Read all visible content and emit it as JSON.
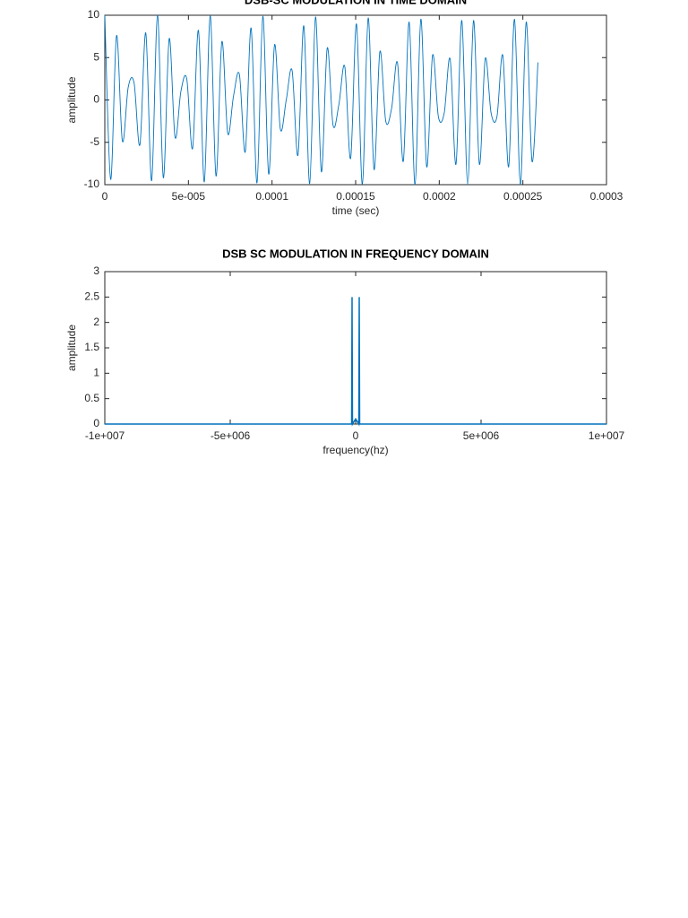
{
  "chart_data": [
    {
      "type": "line",
      "title": "DSB-SC MODULATION IN TIME DOMAIN",
      "x_label": "time (sec)",
      "y_label": "amplitude",
      "x": [
        0,
        3.5e-06,
        7e-06,
        1.05e-05,
        1.4e-05,
        1.75e-05,
        2.1e-05,
        2.45e-05,
        2.8e-05,
        3.15e-05,
        3.5e-05,
        3.85e-05,
        4.2e-05,
        4.55e-05,
        4.9e-05,
        5.25e-05,
        5.6e-05,
        5.95e-05,
        6.3e-05,
        6.65e-05,
        7e-05,
        7.35e-05,
        7.7e-05,
        8.05e-05,
        8.4e-05,
        8.75e-05,
        9.1e-05,
        9.45e-05,
        9.8e-05,
        0.0001015,
        0.000105,
        0.0001085,
        0.000112,
        0.0001155,
        0.000119,
        0.0001225,
        0.000126,
        0.0001295,
        0.000133,
        0.0001365,
        0.00014,
        0.0001435,
        0.000147,
        0.0001505,
        0.000154,
        0.0001575,
        0.000161,
        0.0001645,
        0.000168,
        0.0001715,
        0.000175,
        0.0001785,
        0.000182,
        0.0001855,
        0.000189,
        0.0001925,
        0.000196,
        0.0001995,
        0.000203,
        0.0002065,
        0.00021,
        0.0002135,
        0.000217,
        0.0002205,
        0.000224,
        0.0002275,
        0.000231,
        0.0002345,
        0.000238,
        0.0002415,
        0.000245,
        0.0002485,
        0.000252,
        0.0002555,
        0.000259
      ],
      "series": [
        {
          "color": "#0072bd",
          "values": [
            10,
            -9.38,
            7.59,
            -4.85,
            1.51,
            2.01,
            -5.29,
            7.91,
            -9.54,
            9.99,
            -9.19,
            7.24,
            -4.4,
            1.01,
            2.5,
            -5.71,
            8.21,
            -9.68,
            9.95,
            -8.98,
            6.88,
            -3.94,
            0.51,
            2.99,
            -6.12,
            8.49,
            -9.8,
            9.88,
            -8.75,
            6.51,
            -3.47,
            0,
            3.47,
            -6.52,
            8.75,
            -9.88,
            9.8,
            -8.48,
            6.12,
            -2.99,
            -0.51,
            3.94,
            -6.9,
            8.98,
            -9.95,
            9.68,
            -8.21,
            5.71,
            -2.5,
            -1,
            4.41,
            -7.25,
            9.19,
            -9.99,
            9.54,
            -7.9,
            5.28,
            -2.01,
            -1.51,
            4.86,
            -7.59,
            9.38,
            -10,
            9.38,
            -7.59,
            4.88,
            -1.55,
            -1.98,
            5.27,
            -7.89,
            9.53,
            -9.99,
            9.2,
            -7.27,
            4.43
          ]
        }
      ],
      "xlim": [
        0,
        0.0003
      ],
      "xticks": [
        0,
        {
          "value": 5e-05,
          "label": "5e-005"
        },
        0.0001,
        0.00015,
        0.0002,
        0.00025,
        0.0003
      ],
      "ylim": [
        -10,
        10
      ],
      "yticks": [
        -10,
        -5,
        0,
        5,
        10
      ]
    },
    {
      "type": "line",
      "title": "DSB SC MODULATION IN FREQUENCY DOMAIN",
      "x_label": "frequency(hz)",
      "y_label": "amplitude",
      "x": [
        -10000000,
        -160000,
        -143000,
        -126000,
        0,
        126000,
        143000,
        160000,
        10000000
      ],
      "series": [
        {
          "color": "#0072bd",
          "values": [
            0,
            0,
            2.5,
            0,
            0.1,
            0,
            2.5,
            0,
            0
          ]
        }
      ],
      "xlim": [
        -10000000,
        10000000
      ],
      "xticks": [
        {
          "value": -10000000,
          "label": "-1e+007"
        },
        {
          "value": -5000000,
          "label": "-5e+006"
        },
        0,
        {
          "value": 5000000,
          "label": "5e+006"
        },
        {
          "value": 10000000,
          "label": "1e+007"
        }
      ],
      "ylim": [
        0,
        3
      ],
      "yticks": [
        0,
        0.5,
        1,
        1.5,
        2,
        2.5,
        3
      ]
    }
  ]
}
